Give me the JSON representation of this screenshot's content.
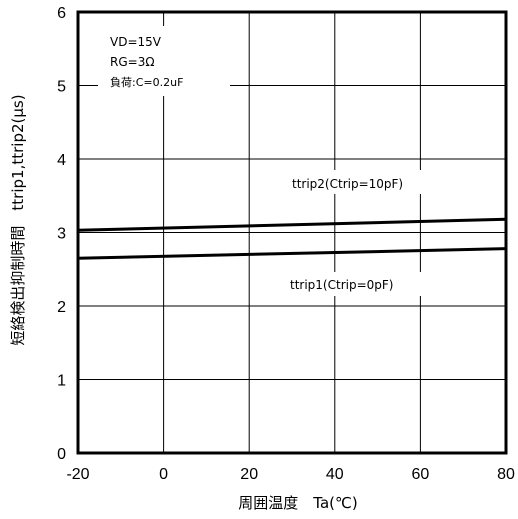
{
  "chart_data": {
    "type": "line",
    "title": "",
    "xlabel": "周囲温度　Ta(℃)",
    "ylabel": "短絡検出抑制時間　ttrip1,ttrip2(μs)",
    "xlim": [
      -20,
      80
    ],
    "ylim": [
      0,
      6
    ],
    "x_ticks": [
      "-20",
      "0",
      "20",
      "40",
      "60",
      "80"
    ],
    "y_ticks": [
      "0",
      "1",
      "2",
      "3",
      "4",
      "5",
      "6"
    ],
    "grid": true,
    "conditions": [
      "VD=15V",
      "RG=3Ω",
      "負荷:C=0.2uF"
    ],
    "series": [
      {
        "name": "ttrip2(Ctrip=10pF)",
        "x": [
          -20,
          80
        ],
        "y": [
          3.03,
          3.18
        ]
      },
      {
        "name": "ttrip1(Ctrip=0pF)",
        "x": [
          -20,
          80
        ],
        "y": [
          2.65,
          2.78
        ]
      }
    ]
  }
}
